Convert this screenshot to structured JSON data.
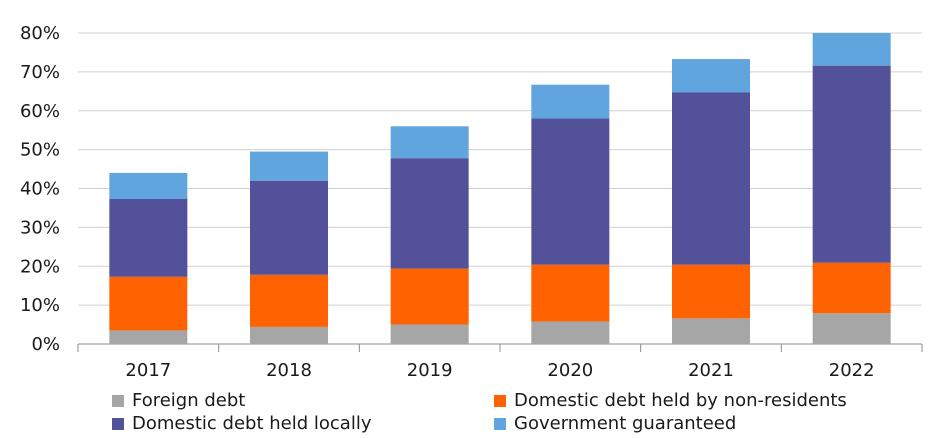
{
  "chart_data": {
    "type": "bar",
    "stacked": true,
    "categories": [
      "2017",
      "2018",
      "2019",
      "2020",
      "2021",
      "2022"
    ],
    "series": [
      {
        "name": "Foreign debt",
        "color": "#a6a6a6",
        "values": [
          3.5,
          4.4,
          5.0,
          5.8,
          6.6,
          7.9
        ]
      },
      {
        "name": "Domestic debt held by non-residents",
        "color": "#ff6200",
        "values": [
          13.8,
          13.4,
          14.4,
          14.6,
          13.8,
          13.0
        ]
      },
      {
        "name": "Domestic debt held locally",
        "color": "#525199",
        "values": [
          20.0,
          24.2,
          28.4,
          37.6,
          44.3,
          50.7
        ]
      },
      {
        "name": "Government guaranteed",
        "color": "#60a5de",
        "values": [
          6.7,
          7.5,
          8.2,
          8.7,
          8.6,
          8.4
        ]
      }
    ],
    "ylim": [
      0,
      80
    ],
    "yticks": [
      "0%",
      "10%",
      "20%",
      "30%",
      "40%",
      "50%",
      "60%",
      "70%",
      "80%"
    ],
    "grid": true,
    "legend_position": "bottom",
    "title": "",
    "xlabel": "",
    "ylabel": ""
  }
}
